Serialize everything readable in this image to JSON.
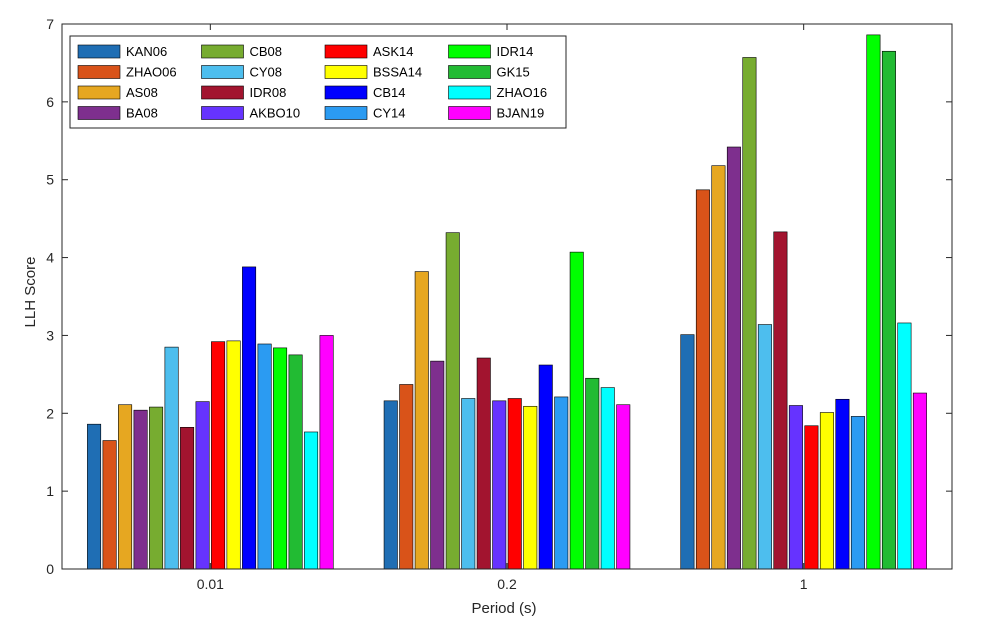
{
  "chart_data": {
    "type": "bar",
    "title": "",
    "xlabel": "Period (s)",
    "ylabel": "LLH Score",
    "categories": [
      "0.01",
      "0.2",
      "1"
    ],
    "ylim": [
      0,
      7
    ],
    "yticks": [
      0,
      1,
      2,
      3,
      4,
      5,
      6,
      7
    ],
    "grid": false,
    "legend_position": "top-left",
    "legend_columns": 4,
    "series": [
      {
        "name": "KAN06",
        "color": "#1f6eb4",
        "values": [
          1.86,
          2.16,
          3.01
        ]
      },
      {
        "name": "ZHAO06",
        "color": "#d95319",
        "values": [
          1.65,
          2.37,
          4.87
        ]
      },
      {
        "name": "AS08",
        "color": "#e6a721",
        "values": [
          2.11,
          3.82,
          5.18
        ]
      },
      {
        "name": "BA08",
        "color": "#7e2f8e",
        "values": [
          2.04,
          2.67,
          5.42
        ]
      },
      {
        "name": "CB08",
        "color": "#77ac30",
        "values": [
          2.08,
          4.32,
          6.57
        ]
      },
      {
        "name": "CY08",
        "color": "#4dbeee",
        "values": [
          2.85,
          2.19,
          3.14
        ]
      },
      {
        "name": "IDR08",
        "color": "#a2142f",
        "values": [
          1.82,
          2.71,
          4.33
        ]
      },
      {
        "name": "AKBO10",
        "color": "#6633ff",
        "values": [
          2.15,
          2.16,
          2.1
        ]
      },
      {
        "name": "ASK14",
        "color": "#ff0000",
        "values": [
          2.92,
          2.19,
          1.84
        ]
      },
      {
        "name": "BSSA14",
        "color": "#ffff00",
        "values": [
          2.93,
          2.09,
          2.01
        ]
      },
      {
        "name": "CB14",
        "color": "#0000ff",
        "values": [
          3.88,
          2.62,
          2.18
        ]
      },
      {
        "name": "CY14",
        "color": "#2b9bf2",
        "values": [
          2.89,
          2.21,
          1.96
        ]
      },
      {
        "name": "IDR14",
        "color": "#00ff00",
        "values": [
          2.84,
          4.07,
          6.86
        ]
      },
      {
        "name": "GK15",
        "color": "#22bb33",
        "values": [
          2.75,
          2.45,
          6.65
        ]
      },
      {
        "name": "ZHAO16",
        "color": "#00ffff",
        "values": [
          1.76,
          2.33,
          3.16
        ]
      },
      {
        "name": "BJAN19",
        "color": "#ff00ff",
        "values": [
          3.0,
          2.11,
          2.26
        ]
      }
    ]
  }
}
